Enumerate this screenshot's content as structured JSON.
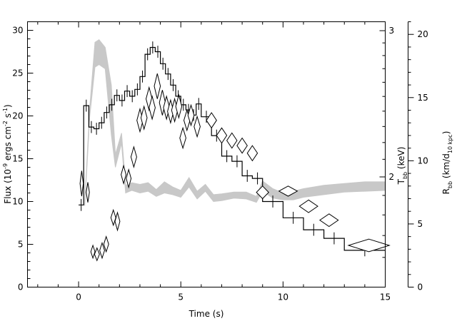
{
  "chart_data": {
    "type": "line",
    "xlabel": "Time (s)",
    "ylabel_left": {
      "base": "Flux (10",
      "sup1": "-9",
      "mid1": " ergs cm",
      "sup2": "-2",
      "mid2": " s",
      "sup3": "-1",
      "end": ")"
    },
    "ylabel_right1": {
      "base": "T",
      "sub": "bb",
      "end": " (keV)"
    },
    "ylabel_right2": {
      "base": "R",
      "sub": "bb",
      "mid": " (km/d",
      "sub2": "10 kpc",
      "end": ")"
    },
    "xlim": [
      -2.5,
      15
    ],
    "ylim_flux": [
      0,
      31
    ],
    "ylim_radius": [
      0,
      21
    ],
    "xticks": [
      0,
      5,
      10,
      15
    ],
    "yticks_flux": [
      0,
      5,
      10,
      15,
      20,
      25,
      30
    ],
    "yticks_radius": [
      0,
      5,
      10,
      15,
      20
    ],
    "temperature_axis": {
      "scale": "log",
      "labeled_ticks": [
        2,
        3
      ]
    },
    "grid": false,
    "series": [
      {
        "style": "histogram-with-error-bars",
        "color": "#000000",
        "bins": [
          [
            0.0,
            0.25,
            9.6
          ],
          [
            0.25,
            0.5,
            21.2
          ],
          [
            0.5,
            0.75,
            18.7
          ],
          [
            0.75,
            1.0,
            18.5
          ],
          [
            1.0,
            1.25,
            19.2
          ],
          [
            1.25,
            1.5,
            20.4
          ],
          [
            1.5,
            1.75,
            21.3
          ],
          [
            1.75,
            2.0,
            22.4
          ],
          [
            2.0,
            2.25,
            21.8
          ],
          [
            2.25,
            2.5,
            22.9
          ],
          [
            2.5,
            2.75,
            22.3
          ],
          [
            2.75,
            3.0,
            23.1
          ],
          [
            3.0,
            3.25,
            24.6
          ],
          [
            3.25,
            3.5,
            27.2
          ],
          [
            3.5,
            3.75,
            28.0
          ],
          [
            3.75,
            4.0,
            27.5
          ],
          [
            4.0,
            4.25,
            26.1
          ],
          [
            4.25,
            4.5,
            24.9
          ],
          [
            4.5,
            4.75,
            23.6
          ],
          [
            4.75,
            5.0,
            22.3
          ],
          [
            5.0,
            5.25,
            21.3
          ],
          [
            5.25,
            5.5,
            20.7
          ],
          [
            5.5,
            5.75,
            20.1
          ],
          [
            5.75,
            6.0,
            21.4
          ],
          [
            6.0,
            6.5,
            19.9
          ],
          [
            6.5,
            7.0,
            17.7
          ],
          [
            7.0,
            7.5,
            15.3
          ],
          [
            7.5,
            8.0,
            14.7
          ],
          [
            8.0,
            8.5,
            13.0
          ],
          [
            8.5,
            9.0,
            12.7
          ],
          [
            9.0,
            10.0,
            10.0
          ],
          [
            10.0,
            11.0,
            8.1
          ],
          [
            11.0,
            12.0,
            6.7
          ],
          [
            12.0,
            13.0,
            5.7
          ],
          [
            13.0,
            15.0,
            4.3
          ]
        ],
        "flux_error": 0.7
      },
      {
        "style": "shaded-band",
        "color": "#c8c8c8",
        "x": [
          0.3,
          0.55,
          0.8,
          1.0,
          1.3,
          1.6,
          1.8,
          2.1,
          2.3,
          2.6,
          3.0,
          3.4,
          3.8,
          4.2,
          4.6,
          5.0,
          5.4,
          5.8,
          6.2,
          6.6,
          7.0,
          7.6,
          8.2,
          8.7,
          9.0,
          9.5,
          10.0,
          10.5,
          11.0,
          12.0,
          13.0,
          14.0,
          15.0
        ],
        "low": [
          9.5,
          20.0,
          25.7,
          26.0,
          25.5,
          17.8,
          14.0,
          16.8,
          11.0,
          11.3,
          11.0,
          11.2,
          10.6,
          11.0,
          10.8,
          10.5,
          11.7,
          10.3,
          11.2,
          10.0,
          10.1,
          10.4,
          10.3,
          9.9,
          11.2,
          10.4,
          10.2,
          10.2,
          10.5,
          10.8,
          11.1,
          11.2,
          11.3
        ],
        "high": [
          10.1,
          21.1,
          28.6,
          28.9,
          28.0,
          23.6,
          15.5,
          18.0,
          11.9,
          12.2,
          12.0,
          12.2,
          11.4,
          12.3,
          11.7,
          11.3,
          12.8,
          11.2,
          12.0,
          10.8,
          10.9,
          11.1,
          11.1,
          10.6,
          12.4,
          11.5,
          11.0,
          11.2,
          11.5,
          11.9,
          12.1,
          12.3,
          12.3
        ]
      },
      {
        "style": "diamonds",
        "axis": "radius",
        "points": [
          [
            0.15,
            8.2,
            0.08,
            1.0
          ],
          [
            0.45,
            7.5,
            0.08,
            0.8
          ],
          [
            0.7,
            2.8,
            0.1,
            0.5
          ],
          [
            0.9,
            2.6,
            0.12,
            0.5
          ],
          [
            1.15,
            2.9,
            0.12,
            0.6
          ],
          [
            1.35,
            3.4,
            0.12,
            0.6
          ],
          [
            1.7,
            5.5,
            0.12,
            0.6
          ],
          [
            1.9,
            5.2,
            0.12,
            0.7
          ],
          [
            2.2,
            8.9,
            0.12,
            0.7
          ],
          [
            2.45,
            8.6,
            0.12,
            0.7
          ],
          [
            2.7,
            10.3,
            0.14,
            0.8
          ],
          [
            3.0,
            13.2,
            0.15,
            0.9
          ],
          [
            3.2,
            13.4,
            0.15,
            0.9
          ],
          [
            3.45,
            14.9,
            0.15,
            0.9
          ],
          [
            3.6,
            14.2,
            0.15,
            0.9
          ],
          [
            3.85,
            15.9,
            0.15,
            1.0
          ],
          [
            4.1,
            14.6,
            0.15,
            1.0
          ],
          [
            4.3,
            14.2,
            0.15,
            0.9
          ],
          [
            4.5,
            13.9,
            0.15,
            0.9
          ],
          [
            4.7,
            14.0,
            0.15,
            0.9
          ],
          [
            4.9,
            14.3,
            0.15,
            0.9
          ],
          [
            5.1,
            11.8,
            0.15,
            0.8
          ],
          [
            5.3,
            13.2,
            0.15,
            0.8
          ],
          [
            5.5,
            13.6,
            0.15,
            0.8
          ],
          [
            5.8,
            12.7,
            0.15,
            0.8
          ],
          [
            6.5,
            13.2,
            0.25,
            0.6
          ],
          [
            7.0,
            12.0,
            0.25,
            0.6
          ],
          [
            7.5,
            11.6,
            0.25,
            0.6
          ],
          [
            8.0,
            11.2,
            0.25,
            0.6
          ],
          [
            8.5,
            10.6,
            0.25,
            0.6
          ],
          [
            9.0,
            7.5,
            0.3,
            0.5
          ],
          [
            10.25,
            7.6,
            0.45,
            0.4
          ],
          [
            11.25,
            6.4,
            0.45,
            0.5
          ],
          [
            12.25,
            5.3,
            0.45,
            0.5
          ],
          [
            14.2,
            3.3,
            1.0,
            0.5
          ]
        ]
      }
    ]
  }
}
